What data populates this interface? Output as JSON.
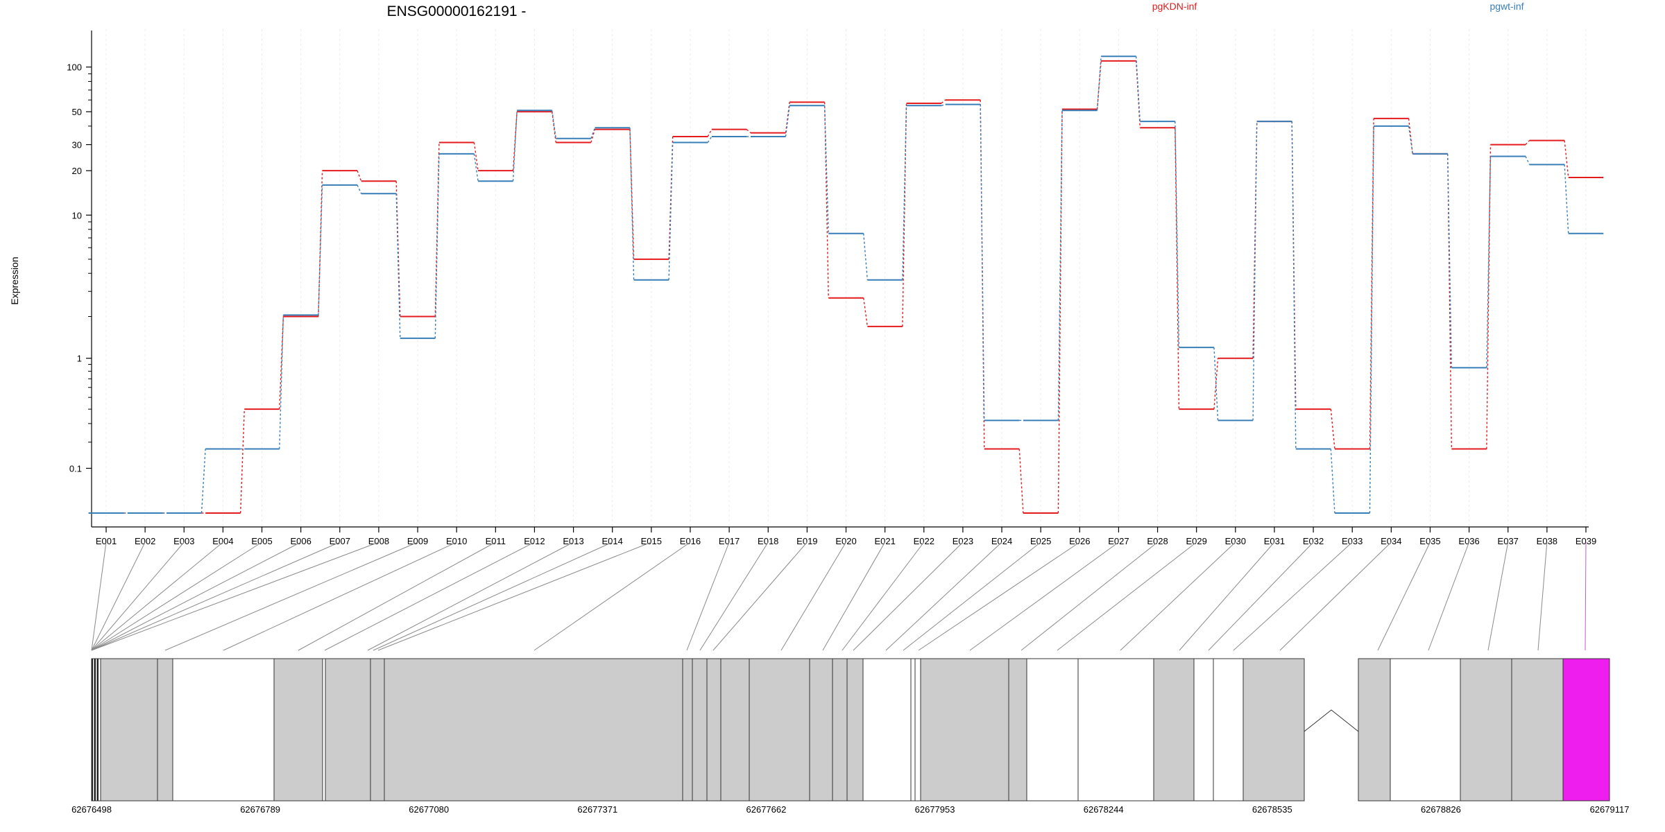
{
  "chart_data": {
    "type": "line",
    "title": "ENSG00000162191 -",
    "ylabel": "Expression",
    "xlabel": "",
    "y_scale": "log10(y + 0.1)",
    "ylim": [
      0.0,
      180
    ],
    "yticks": [
      0.1,
      1,
      10,
      20,
      30,
      50,
      100
    ],
    "ytick_labels": [
      "0.1",
      "1",
      "10",
      "20",
      "30",
      "50",
      "100"
    ],
    "grid": "vertical dotted lines at exon centers",
    "legend_placement": "top-right",
    "categories": [
      "E001",
      "E002",
      "E003",
      "E004",
      "E005",
      "E006",
      "E007",
      "E008",
      "E009",
      "E010",
      "E011",
      "E012",
      "E013",
      "E014",
      "E015",
      "E016",
      "E017",
      "E018",
      "E019",
      "E020",
      "E021",
      "E022",
      "E023",
      "E024",
      "E025",
      "E026",
      "E027",
      "E028",
      "E029",
      "E030",
      "E031",
      "E032",
      "E033",
      "E034",
      "E035",
      "E036",
      "E037",
      "E038",
      "E039"
    ],
    "series": [
      {
        "name": "pgKDN-inf",
        "color": "#e41a1c",
        "values": [
          0.0,
          0.0,
          0.0,
          0.0,
          0.4,
          2.0,
          20,
          17,
          2.0,
          31,
          20,
          50,
          31,
          38,
          5.0,
          34,
          38,
          36,
          58,
          2.7,
          1.7,
          57,
          60,
          0.17,
          0.0,
          52,
          110,
          39,
          0.4,
          1.0,
          43,
          0.4,
          0.17,
          45,
          26,
          0.17,
          30,
          32,
          18
        ]
      },
      {
        "name": "pgwt-inf",
        "color": "#377eb8",
        "values": [
          0.0,
          0.0,
          0.0,
          0.17,
          0.17,
          2.05,
          16,
          14,
          1.4,
          26,
          17,
          51,
          33,
          39,
          3.6,
          31,
          34,
          34,
          55,
          7.5,
          3.6,
          55,
          56,
          0.32,
          0.32,
          51,
          118,
          43,
          1.2,
          0.32,
          43,
          0.17,
          0.0,
          40,
          26,
          0.85,
          25,
          22,
          7.5
        ]
      }
    ]
  },
  "gene_model": {
    "left_coord": "62676498",
    "right_coord": "62679117",
    "axis_labels": [
      "62676498",
      "62676789",
      "62677080",
      "62677371",
      "62677662",
      "62677953",
      "62678244",
      "62678535",
      "62678826",
      "62679117"
    ],
    "highlight_color": "#ee1eee",
    "exon_fill": "#cccccc"
  }
}
